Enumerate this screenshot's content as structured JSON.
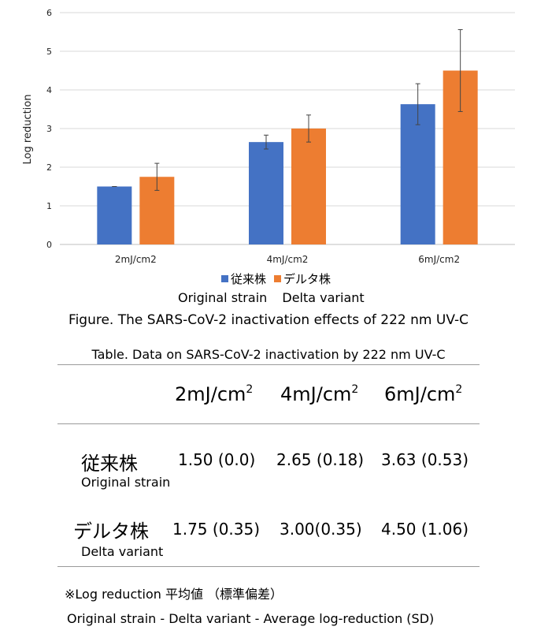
{
  "chart_data": {
    "type": "bar",
    "categories": [
      "2mJ/cm2",
      "4mJ/cm2",
      "6mJ/cm2"
    ],
    "ylabel": "Log reduction",
    "ylim": [
      0,
      6
    ],
    "yticks": [
      "0",
      "1",
      "2",
      "3",
      "4",
      "5",
      "6"
    ],
    "grid": true,
    "legend_position": "bottom",
    "series": [
      {
        "name": "従来株",
        "color": "#4472C4",
        "values": [
          1.5,
          2.65,
          3.63
        ],
        "errors": [
          0.0,
          0.18,
          0.53
        ]
      },
      {
        "name": "デルタ株",
        "color": "#ED7D31",
        "values": [
          1.75,
          3.0,
          4.5
        ],
        "errors": [
          0.35,
          0.35,
          1.06
        ]
      }
    ]
  },
  "legend_english": {
    "original": "Original strain",
    "delta": "Delta variant"
  },
  "figure_caption": "Figure. The SARS-CoV-2 inactivation effects of 222 nm UV-C",
  "table": {
    "caption": "Table. Data on SARS-CoV-2 inactivation by 222 nm UV-C",
    "headers": [
      {
        "base": "2mJ/cm",
        "sup": "2"
      },
      {
        "base": "4mJ/cm",
        "sup": "2"
      },
      {
        "base": "6mJ/cm",
        "sup": "2"
      }
    ],
    "rows": [
      {
        "label": "従来株",
        "sublabel": "Original strain",
        "cells": [
          "1.50 (0.0)",
          "2.65 (0.18)",
          "3.63 (0.53)"
        ]
      },
      {
        "label": "デルタ株",
        "sublabel": "Delta variant",
        "cells": [
          "1.75 (0.35)",
          "3.00(0.35)",
          "4.50 (1.06)"
        ]
      }
    ]
  },
  "notes": {
    "japanese": "※Log reduction 平均値 （標準偏差）",
    "english": "Original strain - Delta variant - Average log-reduction (SD)"
  }
}
